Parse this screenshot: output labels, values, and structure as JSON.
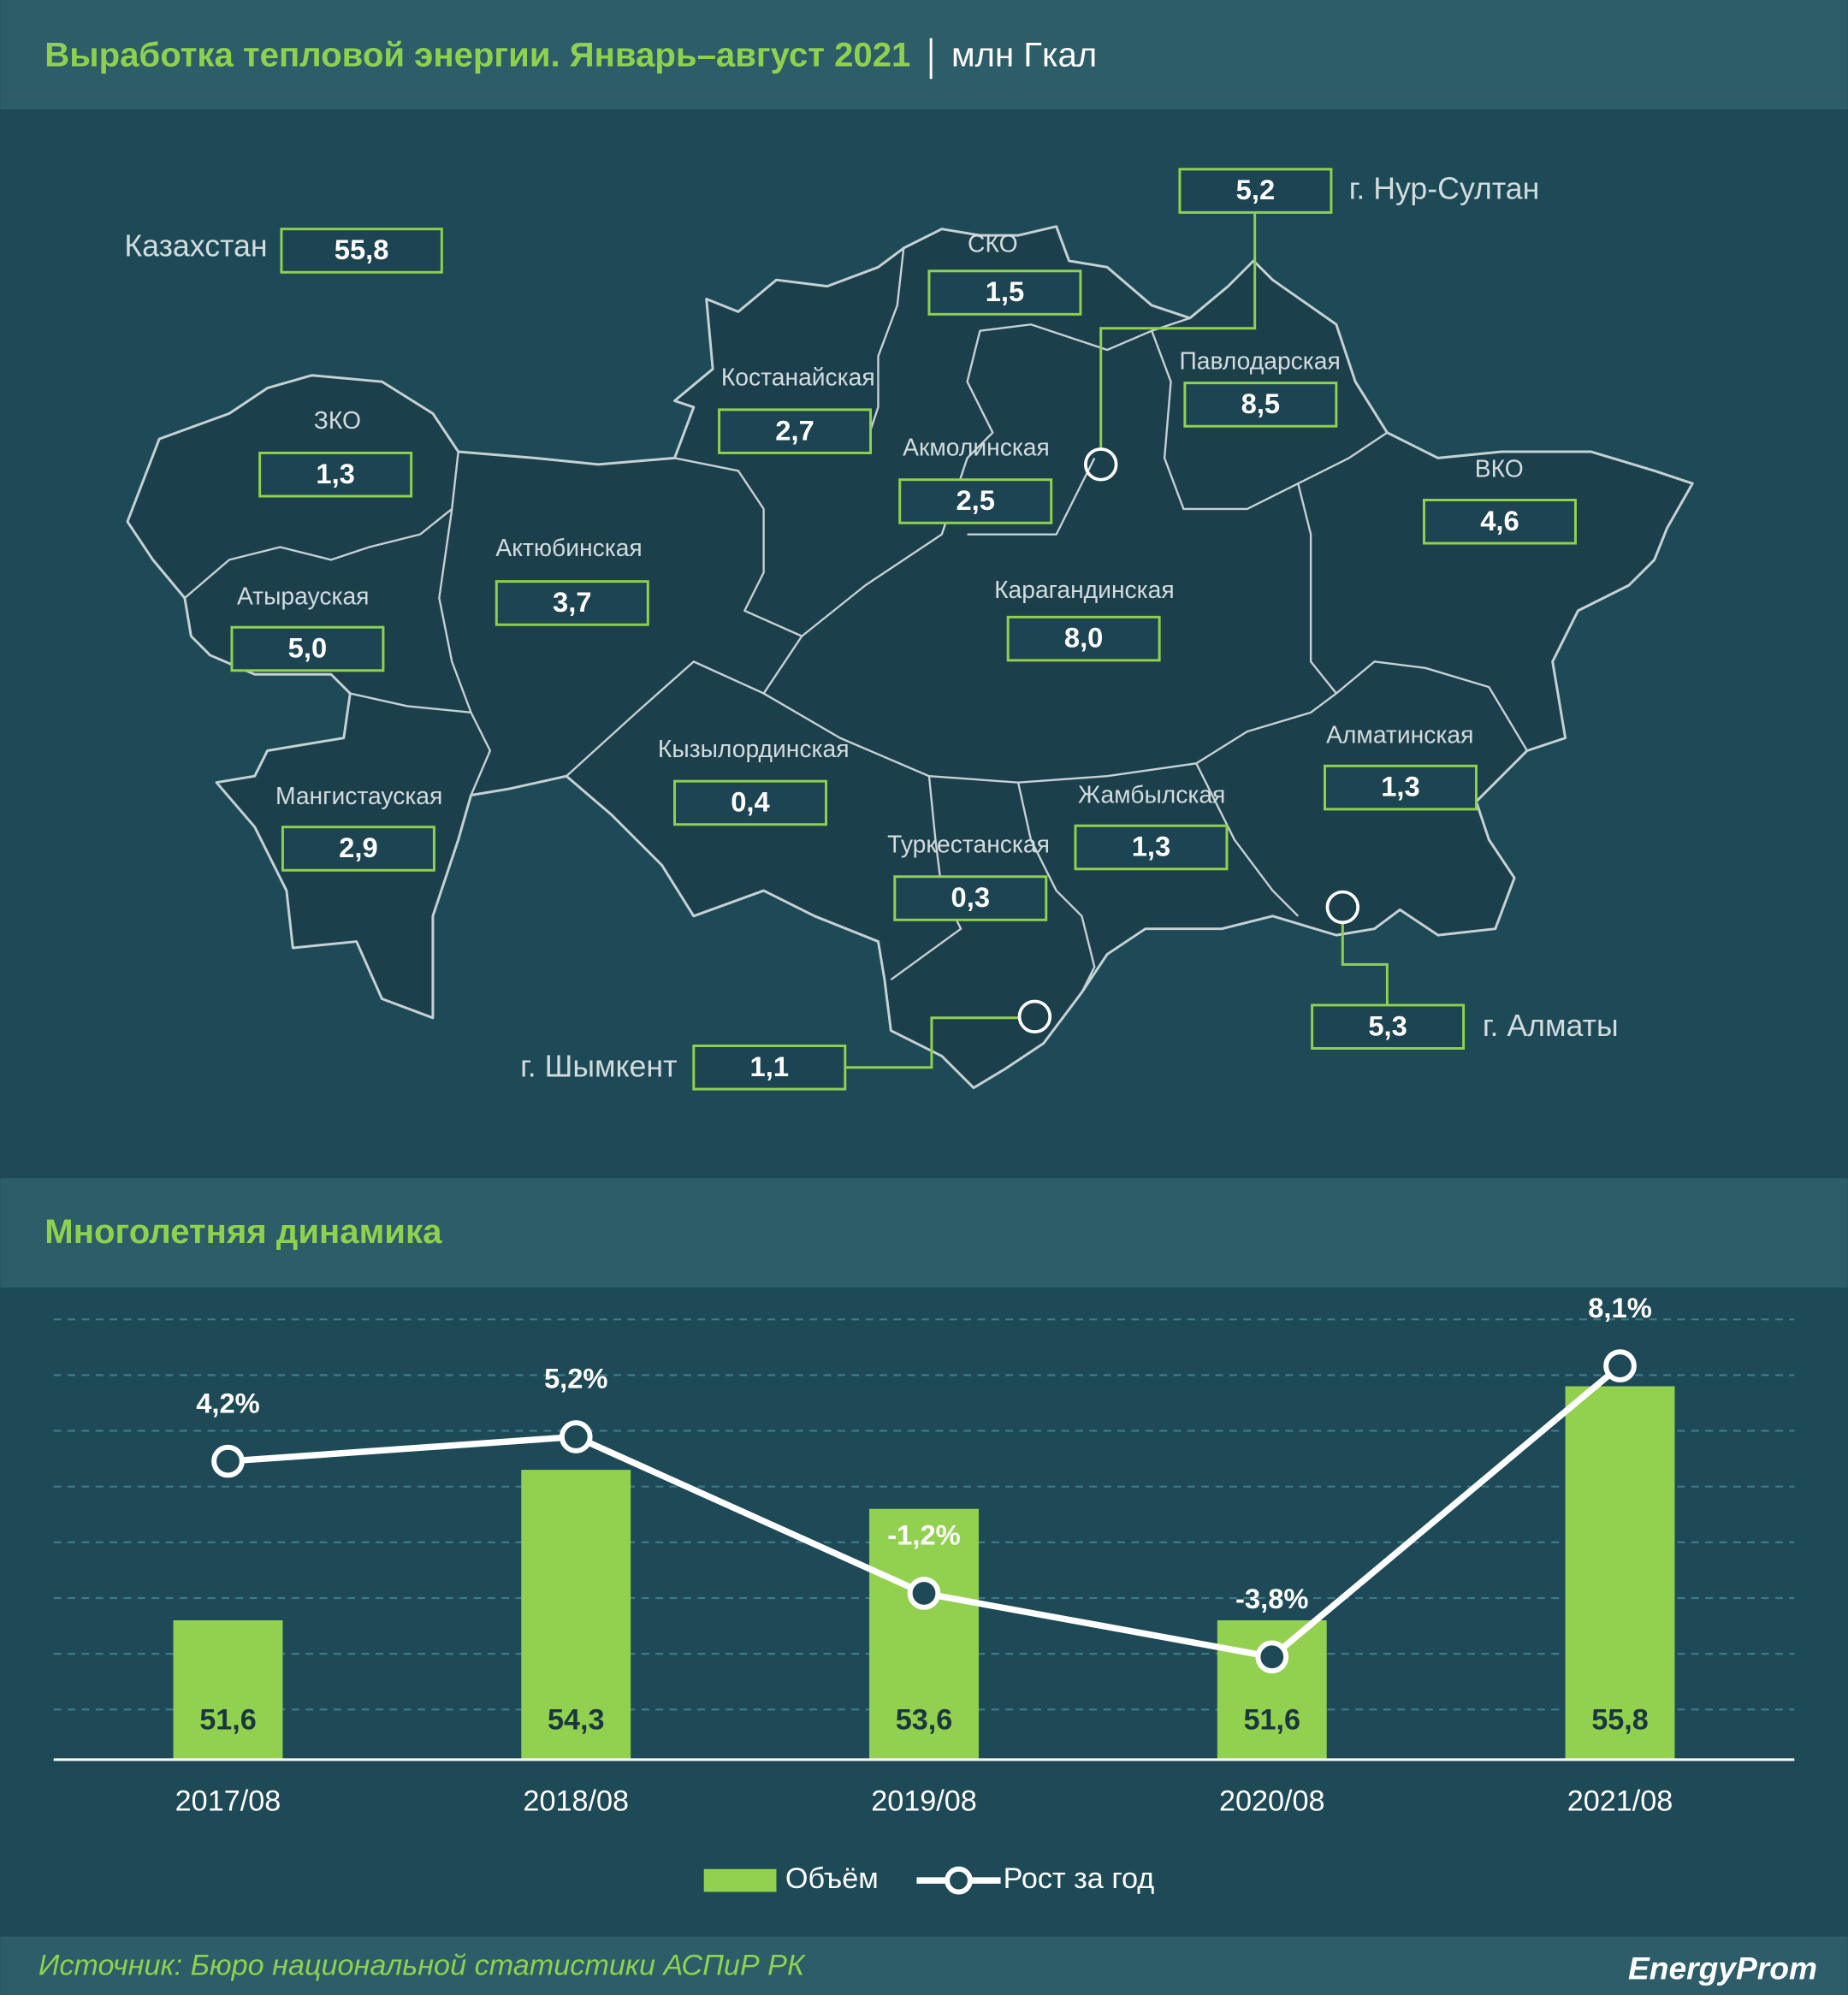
{
  "header": {
    "title": "Выработка тепловой энергии. Январь–август 2021",
    "unit": "млн Гкал"
  },
  "map": {
    "regions": [
      {
        "name": "Казахстан",
        "value": "55,8"
      },
      {
        "name": "г. Нур-Султан",
        "value": "5,2"
      },
      {
        "name": "СКО",
        "value": "1,5"
      },
      {
        "name": "Костанайская",
        "value": "2,7"
      },
      {
        "name": "Павлодарская",
        "value": "8,5"
      },
      {
        "name": "ЗКО",
        "value": "1,3"
      },
      {
        "name": "Акмолинская",
        "value": "2,5"
      },
      {
        "name": "ВКО",
        "value": "4,6"
      },
      {
        "name": "Актюбинская",
        "value": "3,7"
      },
      {
        "name": "Карагандинская",
        "value": "8,0"
      },
      {
        "name": "Атырауская",
        "value": "5,0"
      },
      {
        "name": "Кызылординская",
        "value": "0,4"
      },
      {
        "name": "Алматинская",
        "value": "1,3"
      },
      {
        "name": "Мангистауская",
        "value": "2,9"
      },
      {
        "name": "Жамбылская",
        "value": "1,3"
      },
      {
        "name": "Туркестанская",
        "value": "0,3"
      },
      {
        "name": "г. Алматы",
        "value": "5,3"
      },
      {
        "name": "г. Шымкент",
        "value": "1,1"
      }
    ]
  },
  "chart_data": {
    "type": "bar",
    "title": "Многолетняя динамика",
    "categories": [
      "2017/08",
      "2018/08",
      "2019/08",
      "2020/08",
      "2021/08"
    ],
    "series": [
      {
        "name": "Объём",
        "type": "bar",
        "color": "#92d050",
        "values": [
          51.6,
          54.3,
          53.6,
          51.6,
          55.8
        ],
        "value_labels": [
          "51,6",
          "54,3",
          "53,6",
          "51,6",
          "55,8"
        ]
      },
      {
        "name": "Рост за год",
        "type": "line",
        "axis": "y2",
        "color": "#ffffff",
        "values": [
          4.2,
          5.2,
          -1.2,
          -3.8,
          8.1
        ],
        "value_labels": [
          "4,2%",
          "5,2%",
          "-1,2%",
          "-3,8%",
          "8,1%"
        ]
      }
    ],
    "ylim": [
      49.1,
      57
    ],
    "yticks": [
      50,
      51,
      52,
      53,
      54,
      55,
      56,
      57
    ],
    "y2lim": [
      -8,
      10
    ],
    "grid": true,
    "legend": "bottom"
  },
  "footer": {
    "source": "Источник: Бюро национальной статистики АСПиР РК",
    "logo": "EnergyProm"
  }
}
